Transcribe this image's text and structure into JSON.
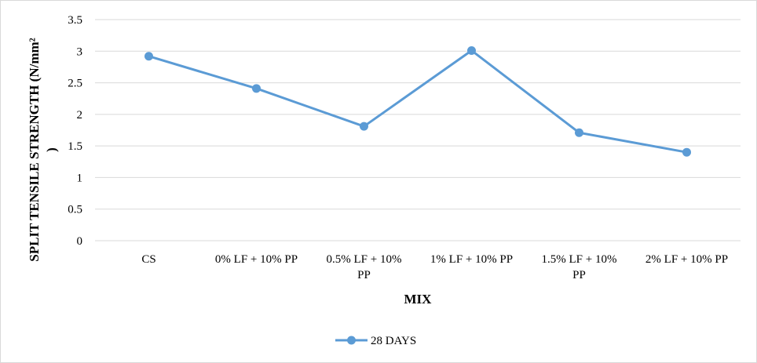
{
  "chart_data": {
    "type": "line",
    "categories": [
      "CS",
      "0% LF + 10% PP",
      "0.5% LF + 10% PP",
      "1% LF + 10% PP",
      "1.5% LF + 10% PP",
      "2% LF + 10% PP"
    ],
    "category_lines": [
      [
        "CS"
      ],
      [
        "0% LF + 10% PP"
      ],
      [
        "0.5% LF + 10%",
        "PP"
      ],
      [
        "1% LF + 10% PP"
      ],
      [
        "1.5% LF + 10%",
        "PP"
      ],
      [
        "2% LF + 10% PP"
      ]
    ],
    "series": [
      {
        "name": "28 DAYS",
        "values": [
          2.92,
          2.41,
          1.81,
          3.01,
          1.71,
          1.4
        ],
        "color": "#5b9bd5"
      }
    ],
    "xlabel": "MIX",
    "ylabel": "SPLIT TENSILE STRENGTH (N/mm²",
    "ylabel_cont": ")",
    "ylim": [
      0,
      3.5
    ],
    "yticks": [
      0,
      0.5,
      1,
      1.5,
      2,
      2.5,
      3,
      3.5
    ],
    "ytick_labels": [
      "0",
      "0.5",
      "1",
      "1.5",
      "2",
      "2.5",
      "3",
      "3.5"
    ],
    "grid": true,
    "grid_color": "#d9d9d9",
    "legend_position": "bottom"
  }
}
